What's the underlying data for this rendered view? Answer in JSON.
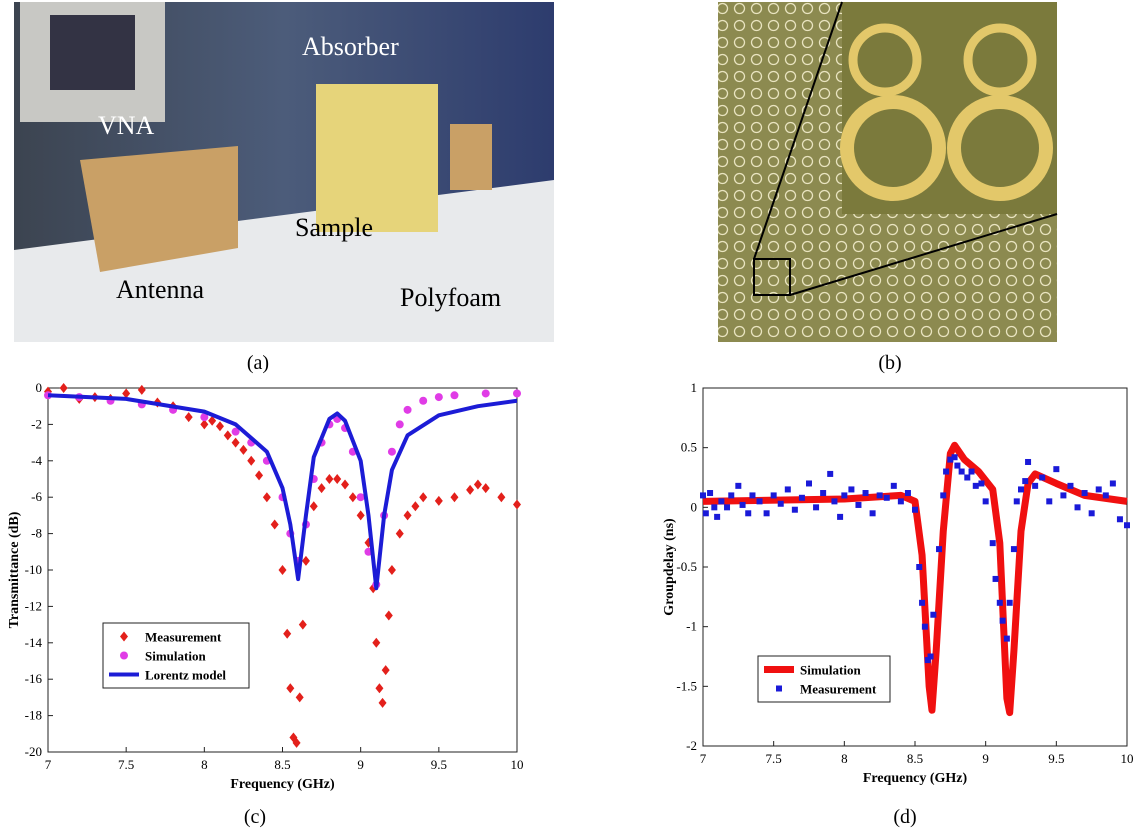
{
  "photos": [
    {
      "caption": "(a)",
      "labels": [
        "VNA",
        "Absorber",
        "Sample",
        "Antenna",
        "Polyfoam"
      ]
    },
    {
      "caption": "(b)"
    }
  ],
  "chart_data": [
    {
      "type": "scatter",
      "caption": "(c)",
      "xlabel": "Frequency (GHz)",
      "ylabel": "Transmittance (dB)",
      "xlim": [
        7,
        10
      ],
      "xticks": [
        7,
        7.5,
        8,
        8.5,
        9,
        9.5,
        10
      ],
      "ylim": [
        -20,
        0
      ],
      "yticks": [
        -20,
        -18,
        -16,
        -14,
        -12,
        -10,
        -8,
        -6,
        -4,
        -2,
        0
      ],
      "legend": "lower left",
      "series": [
        {
          "name": "Measurement",
          "color": "#e3201b",
          "marker": "diamond",
          "x": [
            7.0,
            7.1,
            7.2,
            7.3,
            7.4,
            7.5,
            7.6,
            7.7,
            7.8,
            7.9,
            8.0,
            8.05,
            8.1,
            8.15,
            8.2,
            8.25,
            8.3,
            8.35,
            8.4,
            8.45,
            8.5,
            8.53,
            8.55,
            8.57,
            8.59,
            8.61,
            8.63,
            8.65,
            8.7,
            8.75,
            8.8,
            8.85,
            8.9,
            8.95,
            9.0,
            9.05,
            9.08,
            9.1,
            9.12,
            9.14,
            9.16,
            9.18,
            9.2,
            9.25,
            9.3,
            9.35,
            9.4,
            9.5,
            9.6,
            9.7,
            9.75,
            9.8,
            9.9,
            10.0
          ],
          "values": [
            -0.2,
            0,
            -0.6,
            -0.5,
            -0.6,
            -0.3,
            -0.1,
            -0.8,
            -1.0,
            -1.6,
            -2.0,
            -1.8,
            -2.1,
            -2.6,
            -3.0,
            -3.4,
            -4.0,
            -4.8,
            -6.0,
            -7.5,
            -10.0,
            -13.5,
            -16.5,
            -19.2,
            -19.5,
            -17,
            -13,
            -9.5,
            -6.5,
            -5.5,
            -5.0,
            -5.0,
            -5.3,
            -6.0,
            -7.0,
            -8.5,
            -11,
            -14,
            -16.5,
            -17.3,
            -15.5,
            -12.5,
            -10,
            -8,
            -7,
            -6.5,
            -6.0,
            -6.2,
            -6.0,
            -5.6,
            -5.3,
            -5.5,
            -6.0,
            -6.4
          ]
        },
        {
          "name": "Simulation",
          "color": "#e03ce6",
          "marker": "circle",
          "x": [
            7.0,
            7.2,
            7.4,
            7.6,
            7.8,
            8.0,
            8.2,
            8.3,
            8.4,
            8.5,
            8.55,
            8.6,
            8.65,
            8.7,
            8.75,
            8.8,
            8.85,
            8.9,
            8.95,
            9.0,
            9.05,
            9.1,
            9.15,
            9.2,
            9.25,
            9.3,
            9.4,
            9.5,
            9.6,
            9.8,
            10.0
          ],
          "values": [
            -0.4,
            -0.5,
            -0.7,
            -0.9,
            -1.2,
            -1.6,
            -2.4,
            -3.0,
            -4.0,
            -6.0,
            -8.0,
            -9.5,
            -7.5,
            -5.0,
            -3.0,
            -2.0,
            -1.7,
            -2.2,
            -3.5,
            -6.0,
            -9.0,
            -10.8,
            -7,
            -3.5,
            -2.0,
            -1.2,
            -0.7,
            -0.5,
            -0.4,
            -0.3,
            -0.3
          ]
        },
        {
          "name": "Lorentz model",
          "color": "#1c1cd6",
          "marker": "line",
          "x": [
            7.0,
            7.5,
            8.0,
            8.2,
            8.4,
            8.5,
            8.55,
            8.6,
            8.65,
            8.7,
            8.8,
            8.85,
            8.9,
            9.0,
            9.05,
            9.1,
            9.15,
            9.2,
            9.3,
            9.5,
            9.75,
            10.0
          ],
          "values": [
            -0.4,
            -0.6,
            -1.3,
            -2.0,
            -3.5,
            -5.5,
            -7.5,
            -10.5,
            -7,
            -3.8,
            -1.7,
            -1.4,
            -1.8,
            -4.0,
            -7,
            -11,
            -7,
            -4.5,
            -2.6,
            -1.5,
            -1.0,
            -0.7
          ]
        }
      ]
    },
    {
      "type": "scatter",
      "caption": "(d)",
      "xlabel": "Frequency (GHz)",
      "ylabel": "Groupdelay (ns)",
      "xlim": [
        7,
        10
      ],
      "xticks": [
        7,
        7.5,
        8,
        8.5,
        9,
        9.5,
        10
      ],
      "ylim": [
        -2,
        1
      ],
      "yticks": [
        -2,
        -1.5,
        -1,
        -0.5,
        0,
        0.5,
        1
      ],
      "legend": "lower left",
      "series": [
        {
          "name": "Simulation",
          "color": "#f01010",
          "marker": "line",
          "x": [
            7.0,
            8.0,
            8.4,
            8.5,
            8.55,
            8.6,
            8.62,
            8.65,
            8.7,
            8.75,
            8.78,
            8.85,
            8.95,
            9.05,
            9.1,
            9.15,
            9.17,
            9.2,
            9.25,
            9.3,
            9.35,
            9.5,
            9.7,
            10.0
          ],
          "values": [
            0.05,
            0.07,
            0.1,
            0.05,
            -0.4,
            -1.5,
            -1.7,
            -1.2,
            -0.2,
            0.45,
            0.52,
            0.4,
            0.3,
            0.15,
            -0.3,
            -1.6,
            -1.72,
            -1.2,
            -0.2,
            0.2,
            0.28,
            0.2,
            0.1,
            0.05
          ]
        },
        {
          "name": "Measurement",
          "color": "#1a1ad8",
          "marker": "square",
          "x": [
            7.0,
            7.02,
            7.05,
            7.08,
            7.1,
            7.13,
            7.17,
            7.2,
            7.25,
            7.28,
            7.32,
            7.35,
            7.4,
            7.45,
            7.5,
            7.55,
            7.6,
            7.65,
            7.7,
            7.75,
            7.8,
            7.85,
            7.9,
            7.93,
            7.97,
            8.0,
            8.05,
            8.1,
            8.15,
            8.2,
            8.25,
            8.3,
            8.35,
            8.4,
            8.45,
            8.5,
            8.53,
            8.55,
            8.57,
            8.59,
            8.61,
            8.63,
            8.67,
            8.7,
            8.72,
            8.75,
            8.78,
            8.8,
            8.83,
            8.87,
            8.9,
            8.93,
            8.97,
            9.0,
            9.05,
            9.07,
            9.1,
            9.12,
            9.15,
            9.17,
            9.2,
            9.22,
            9.25,
            9.28,
            9.3,
            9.35,
            9.4,
            9.45,
            9.5,
            9.55,
            9.6,
            9.65,
            9.7,
            9.75,
            9.8,
            9.85,
            9.9,
            9.95,
            10.0
          ],
          "values": [
            0.1,
            -0.05,
            0.12,
            0.0,
            -0.08,
            0.05,
            0.0,
            0.1,
            0.18,
            0.02,
            -0.05,
            0.1,
            0.05,
            -0.05,
            0.1,
            0.03,
            0.15,
            -0.02,
            0.08,
            0.2,
            0.0,
            0.12,
            0.28,
            0.05,
            -0.08,
            0.1,
            0.15,
            0.02,
            0.12,
            -0.05,
            0.1,
            0.08,
            0.18,
            0.05,
            0.12,
            -0.02,
            -0.5,
            -0.8,
            -1.0,
            -1.28,
            -1.25,
            -0.9,
            -0.35,
            0.1,
            0.3,
            0.4,
            0.42,
            0.35,
            0.3,
            0.25,
            0.3,
            0.18,
            0.2,
            0.05,
            -0.3,
            -0.6,
            -0.8,
            -0.95,
            -1.1,
            -0.8,
            -0.35,
            0.05,
            0.15,
            0.22,
            0.38,
            0.18,
            0.25,
            0.05,
            0.32,
            0.1,
            0.18,
            0.0,
            0.12,
            -0.05,
            0.15,
            0.1,
            0.2,
            -0.1,
            -0.15
          ]
        }
      ]
    }
  ]
}
